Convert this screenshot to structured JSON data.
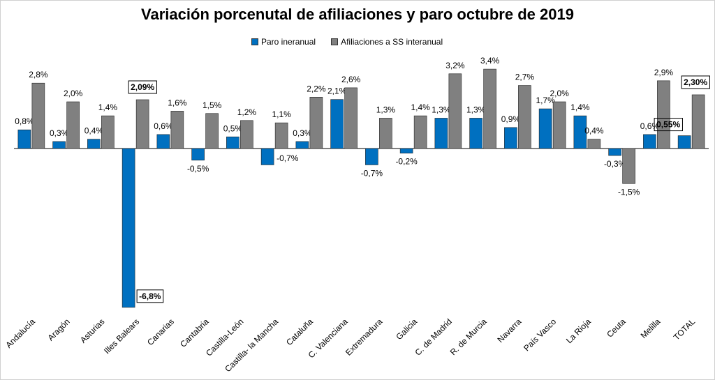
{
  "chart_data": {
    "type": "bar",
    "title": "Variación porcenutal de afiliaciones y paro octubre de 2019",
    "xlabel": "",
    "ylabel": "",
    "ylim": [
      -7.0,
      3.8
    ],
    "grid": false,
    "legend_position": "top-center",
    "categories": [
      "Andalucía",
      "Aragón",
      "Asturias",
      "Illes Balears",
      "Canarias",
      "Cantabria",
      "Castilla-León",
      "Castilla- la Mancha",
      "Cataluña",
      "C. Valenciana",
      "Extremadura",
      "Galicia",
      "C. de Madrid",
      "R. de Murcia",
      "Navarra",
      "País Vasco",
      "La Rioja",
      "Ceuta",
      "Melilla",
      "TOTAL"
    ],
    "series": [
      {
        "name": "Paro ineranual",
        "color": "#0070c0",
        "values": [
          0.8,
          0.3,
          0.4,
          -6.8,
          0.6,
          -0.5,
          0.5,
          -0.7,
          0.3,
          2.1,
          -0.7,
          -0.2,
          1.3,
          1.3,
          0.9,
          1.7,
          1.4,
          -0.3,
          0.6,
          0.55
        ],
        "labels": [
          "0,8%",
          "0,3%",
          "0,4%",
          "-6,8%",
          "0,6%",
          "-0,5%",
          "0,5%",
          "-0,7%",
          "0,3%",
          "2,1%",
          "-0,7%",
          "-0,2%",
          "1,3%",
          "1,3%",
          "0,9%",
          "1,7%",
          "1,4%",
          "-0,3%",
          "0,6%",
          "0,55%"
        ]
      },
      {
        "name": "Afiliaciones a SS interanual",
        "color": "#808080",
        "values": [
          2.8,
          2.0,
          1.4,
          2.09,
          1.6,
          1.5,
          1.2,
          1.1,
          2.2,
          2.6,
          1.3,
          1.4,
          3.2,
          3.4,
          2.7,
          2.0,
          0.4,
          -1.5,
          2.9,
          2.3
        ],
        "labels": [
          "2,8%",
          "2,0%",
          "1,4%",
          "2,09%",
          "1,6%",
          "1,5%",
          "1,2%",
          "1,1%",
          "2,2%",
          "2,6%",
          "1,3%",
          "1,4%",
          "3,2%",
          "3,4%",
          "2,7%",
          "2,0%",
          "0,4%",
          "-1,5%",
          "2,9%",
          "2,30%"
        ]
      }
    ],
    "highlighted_labels": [
      {
        "series": 0,
        "index": 3
      },
      {
        "series": 0,
        "index": 19
      },
      {
        "series": 1,
        "index": 3
      },
      {
        "series": 1,
        "index": 19
      }
    ]
  }
}
